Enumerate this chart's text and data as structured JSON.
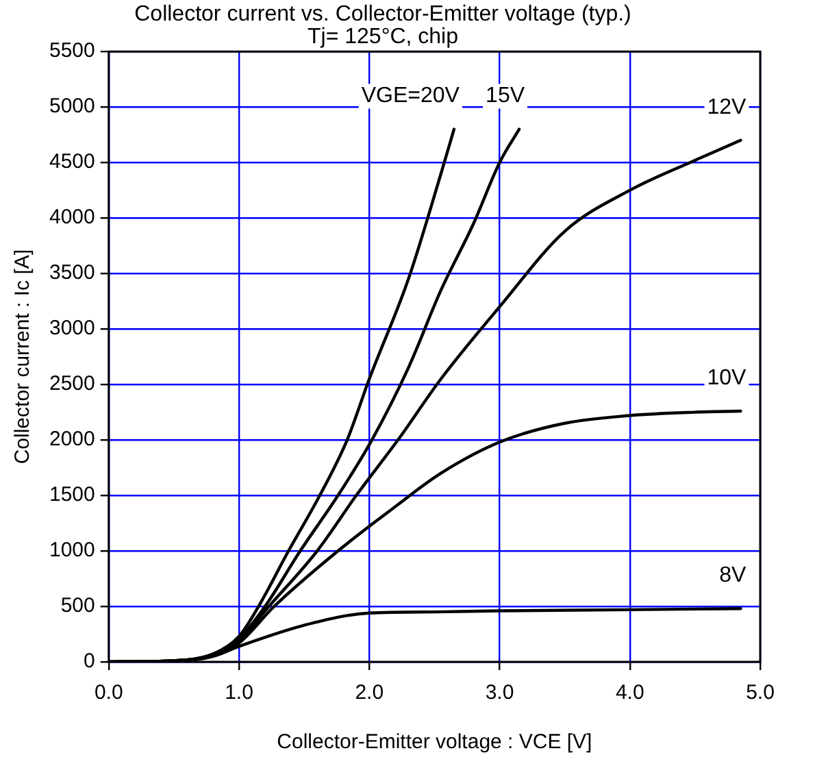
{
  "chart_data": {
    "type": "line",
    "title": "Collector current vs. Collector-Emitter voltage (typ.)",
    "subtitle": "Tj= 125°C, chip",
    "xlabel": "Collector-Emitter voltage : VCE [V]",
    "ylabel": "Collector current : Ic [A]",
    "xlim": [
      0,
      5
    ],
    "xticks": [
      {
        "value": 0,
        "label": "0.0"
      },
      {
        "value": 1,
        "label": "1.0"
      },
      {
        "value": 2,
        "label": "2.0"
      },
      {
        "value": 3,
        "label": "3.0"
      },
      {
        "value": 4,
        "label": "4.0"
      },
      {
        "value": 5,
        "label": "5.0"
      }
    ],
    "ylim": [
      0,
      5500
    ],
    "yticks": [
      0,
      500,
      1000,
      1500,
      2000,
      2500,
      3000,
      3500,
      4000,
      4500,
      5000,
      5500
    ],
    "grid": true,
    "legend": false,
    "marker": "none",
    "line_style": "solid",
    "series": [
      {
        "name": "VGE=20V",
        "color": "#000000",
        "x": [
          0,
          0.5,
          0.8,
          1.0,
          1.15,
          1.38,
          1.62,
          1.83,
          2.0,
          2.3,
          2.55,
          2.65
        ],
        "values": [
          0,
          10,
          70,
          230,
          500,
          1000,
          1500,
          2000,
          2550,
          3450,
          4400,
          4800
        ]
      },
      {
        "name": "15V",
        "color": "#000000",
        "x": [
          0,
          0.5,
          0.8,
          1.0,
          1.2,
          1.47,
          1.76,
          2.02,
          2.3,
          2.55,
          2.8,
          3.0,
          3.15
        ],
        "values": [
          0,
          10,
          70,
          210,
          500,
          1000,
          1500,
          2000,
          2650,
          3350,
          3950,
          4500,
          4800
        ]
      },
      {
        "name": "12V",
        "color": "#000000",
        "x": [
          0,
          0.5,
          0.8,
          1.0,
          1.23,
          1.6,
          1.9,
          2.22,
          2.55,
          3.0,
          3.5,
          4.0,
          4.5,
          4.85
        ],
        "values": [
          0,
          10,
          60,
          190,
          500,
          1000,
          1500,
          2000,
          2550,
          3200,
          3880,
          4250,
          4520,
          4700
        ]
      },
      {
        "name": "10V",
        "color": "#000000",
        "x": [
          0,
          0.5,
          0.8,
          1.0,
          1.27,
          1.76,
          2.2,
          2.55,
          3.0,
          3.5,
          4.0,
          4.5,
          4.85
        ],
        "values": [
          0,
          10,
          50,
          170,
          500,
          1000,
          1400,
          1700,
          1980,
          2150,
          2220,
          2250,
          2260
        ]
      },
      {
        "name": "8V",
        "color": "#000000",
        "x": [
          0,
          0.5,
          0.8,
          1.0,
          1.5,
          2.0,
          2.5,
          3.0,
          4.0,
          4.85
        ],
        "values": [
          0,
          10,
          50,
          140,
          330,
          440,
          450,
          460,
          470,
          480
        ]
      }
    ]
  }
}
